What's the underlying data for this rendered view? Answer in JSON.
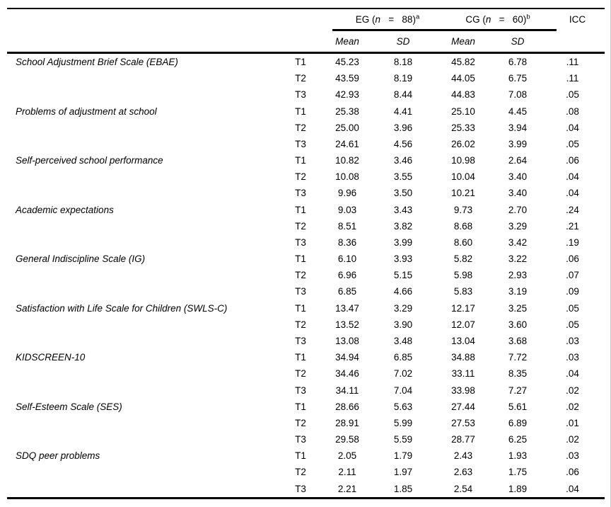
{
  "table": {
    "header": {
      "eg": {
        "prefix": "EG (",
        "n": "n",
        "eq": "   =   ",
        "count": "88)",
        "sup": "a"
      },
      "cg": {
        "prefix": "CG (",
        "n": "n",
        "eq": "   =   ",
        "count": "60)",
        "sup": "b"
      },
      "icc": "ICC",
      "subheaders": [
        "Mean",
        "SD",
        "Mean",
        "SD"
      ]
    },
    "groups": [
      {
        "scale": "School Adjustment Brief Scale (EBAE)",
        "rows": [
          {
            "time": "T1",
            "eg_mean": "45.23",
            "eg_sd": "8.18",
            "cg_mean": "45.82",
            "cg_sd": "6.78",
            "icc": ".11"
          },
          {
            "time": "T2",
            "eg_mean": "43.59",
            "eg_sd": "8.19",
            "cg_mean": "44.05",
            "cg_sd": "6.75",
            "icc": ".11"
          },
          {
            "time": "T3",
            "eg_mean": "42.93",
            "eg_sd": "8.44",
            "cg_mean": "44.83",
            "cg_sd": "7.08",
            "icc": ".05"
          }
        ]
      },
      {
        "scale": "Problems of adjustment at school",
        "rows": [
          {
            "time": "T1",
            "eg_mean": "25.38",
            "eg_sd": "4.41",
            "cg_mean": "25.10",
            "cg_sd": "4.45",
            "icc": ".08"
          },
          {
            "time": "T2",
            "eg_mean": "25.00",
            "eg_sd": "3.96",
            "cg_mean": "25.33",
            "cg_sd": "3.94",
            "icc": ".04"
          },
          {
            "time": "T3",
            "eg_mean": "24.61",
            "eg_sd": "4.56",
            "cg_mean": "26.02",
            "cg_sd": "3.99",
            "icc": ".05"
          }
        ]
      },
      {
        "scale": "Self-perceived school performance",
        "rows": [
          {
            "time": "T1",
            "eg_mean": "10.82",
            "eg_sd": "3.46",
            "cg_mean": "10.98",
            "cg_sd": "2.64",
            "icc": ".06"
          },
          {
            "time": "T2",
            "eg_mean": "10.08",
            "eg_sd": "3.55",
            "cg_mean": "10.04",
            "cg_sd": "3.40",
            "icc": ".04"
          },
          {
            "time": "T3",
            "eg_mean": "9.96",
            "eg_sd": "3.50",
            "cg_mean": "10.21",
            "cg_sd": "3.40",
            "icc": ".04"
          }
        ]
      },
      {
        "scale": "Academic expectations",
        "rows": [
          {
            "time": "T1",
            "eg_mean": "9.03",
            "eg_sd": "3.43",
            "cg_mean": "9.73",
            "cg_sd": "2.70",
            "icc": ".24"
          },
          {
            "time": "T2",
            "eg_mean": "8.51",
            "eg_sd": "3.82",
            "cg_mean": "8.68",
            "cg_sd": "3.29",
            "icc": ".21"
          },
          {
            "time": "T3",
            "eg_mean": "8.36",
            "eg_sd": "3.99",
            "cg_mean": "8.60",
            "cg_sd": "3.42",
            "icc": ".19"
          }
        ]
      },
      {
        "scale": "General Indiscipline Scale (IG)",
        "rows": [
          {
            "time": "T1",
            "eg_mean": "6.10",
            "eg_sd": "3.93",
            "cg_mean": "5.82",
            "cg_sd": "3.22",
            "icc": ".06"
          },
          {
            "time": "T2",
            "eg_mean": "6.96",
            "eg_sd": "5.15",
            "cg_mean": "5.98",
            "cg_sd": "2.93",
            "icc": ".07"
          },
          {
            "time": "T3",
            "eg_mean": "6.85",
            "eg_sd": "4.66",
            "cg_mean": "5.83",
            "cg_sd": "3.19",
            "icc": ".09"
          }
        ]
      },
      {
        "scale": "Satisfaction with Life Scale for Children (SWLS-C)",
        "rows": [
          {
            "time": "T1",
            "eg_mean": "13.47",
            "eg_sd": "3.29",
            "cg_mean": "12.17",
            "cg_sd": "3.25",
            "icc": ".05"
          },
          {
            "time": "T2",
            "eg_mean": "13.52",
            "eg_sd": "3.90",
            "cg_mean": "12.07",
            "cg_sd": "3.60",
            "icc": ".05"
          },
          {
            "time": "T3",
            "eg_mean": "13.08",
            "eg_sd": "3.48",
            "cg_mean": "13.04",
            "cg_sd": "3.68",
            "icc": ".03"
          }
        ]
      },
      {
        "scale": "KIDSCREEN-10",
        "rows": [
          {
            "time": "T1",
            "eg_mean": "34.94",
            "eg_sd": "6.85",
            "cg_mean": "34.88",
            "cg_sd": "7.72",
            "icc": ".03"
          },
          {
            "time": "T2",
            "eg_mean": "34.46",
            "eg_sd": "7.02",
            "cg_mean": "33.11",
            "cg_sd": "8.35",
            "icc": ".04"
          },
          {
            "time": "T3",
            "eg_mean": "34.11",
            "eg_sd": "7.04",
            "cg_mean": "33.98",
            "cg_sd": "7.27",
            "icc": ".02"
          }
        ]
      },
      {
        "scale": "Self-Esteem Scale (SES)",
        "rows": [
          {
            "time": "T1",
            "eg_mean": "28.66",
            "eg_sd": "5.63",
            "cg_mean": "27.44",
            "cg_sd": "5.61",
            "icc": ".02"
          },
          {
            "time": "T2",
            "eg_mean": "28.91",
            "eg_sd": "5.99",
            "cg_mean": "27.53",
            "cg_sd": "6.89",
            "icc": ".01"
          },
          {
            "time": "T3",
            "eg_mean": "29.58",
            "eg_sd": "5.59",
            "cg_mean": "28.77",
            "cg_sd": "6.25",
            "icc": ".02"
          }
        ]
      },
      {
        "scale": "SDQ peer problems",
        "rows": [
          {
            "time": "T1",
            "eg_mean": "2.05",
            "eg_sd": "1.79",
            "cg_mean": "2.43",
            "cg_sd": "1.93",
            "icc": ".03"
          },
          {
            "time": "T2",
            "eg_mean": "2.11",
            "eg_sd": "1.97",
            "cg_mean": "2.63",
            "cg_sd": "1.75",
            "icc": ".06"
          },
          {
            "time": "T3",
            "eg_mean": "2.21",
            "eg_sd": "1.85",
            "cg_mean": "2.54",
            "cg_sd": "1.89",
            "icc": ".04"
          }
        ]
      }
    ]
  }
}
